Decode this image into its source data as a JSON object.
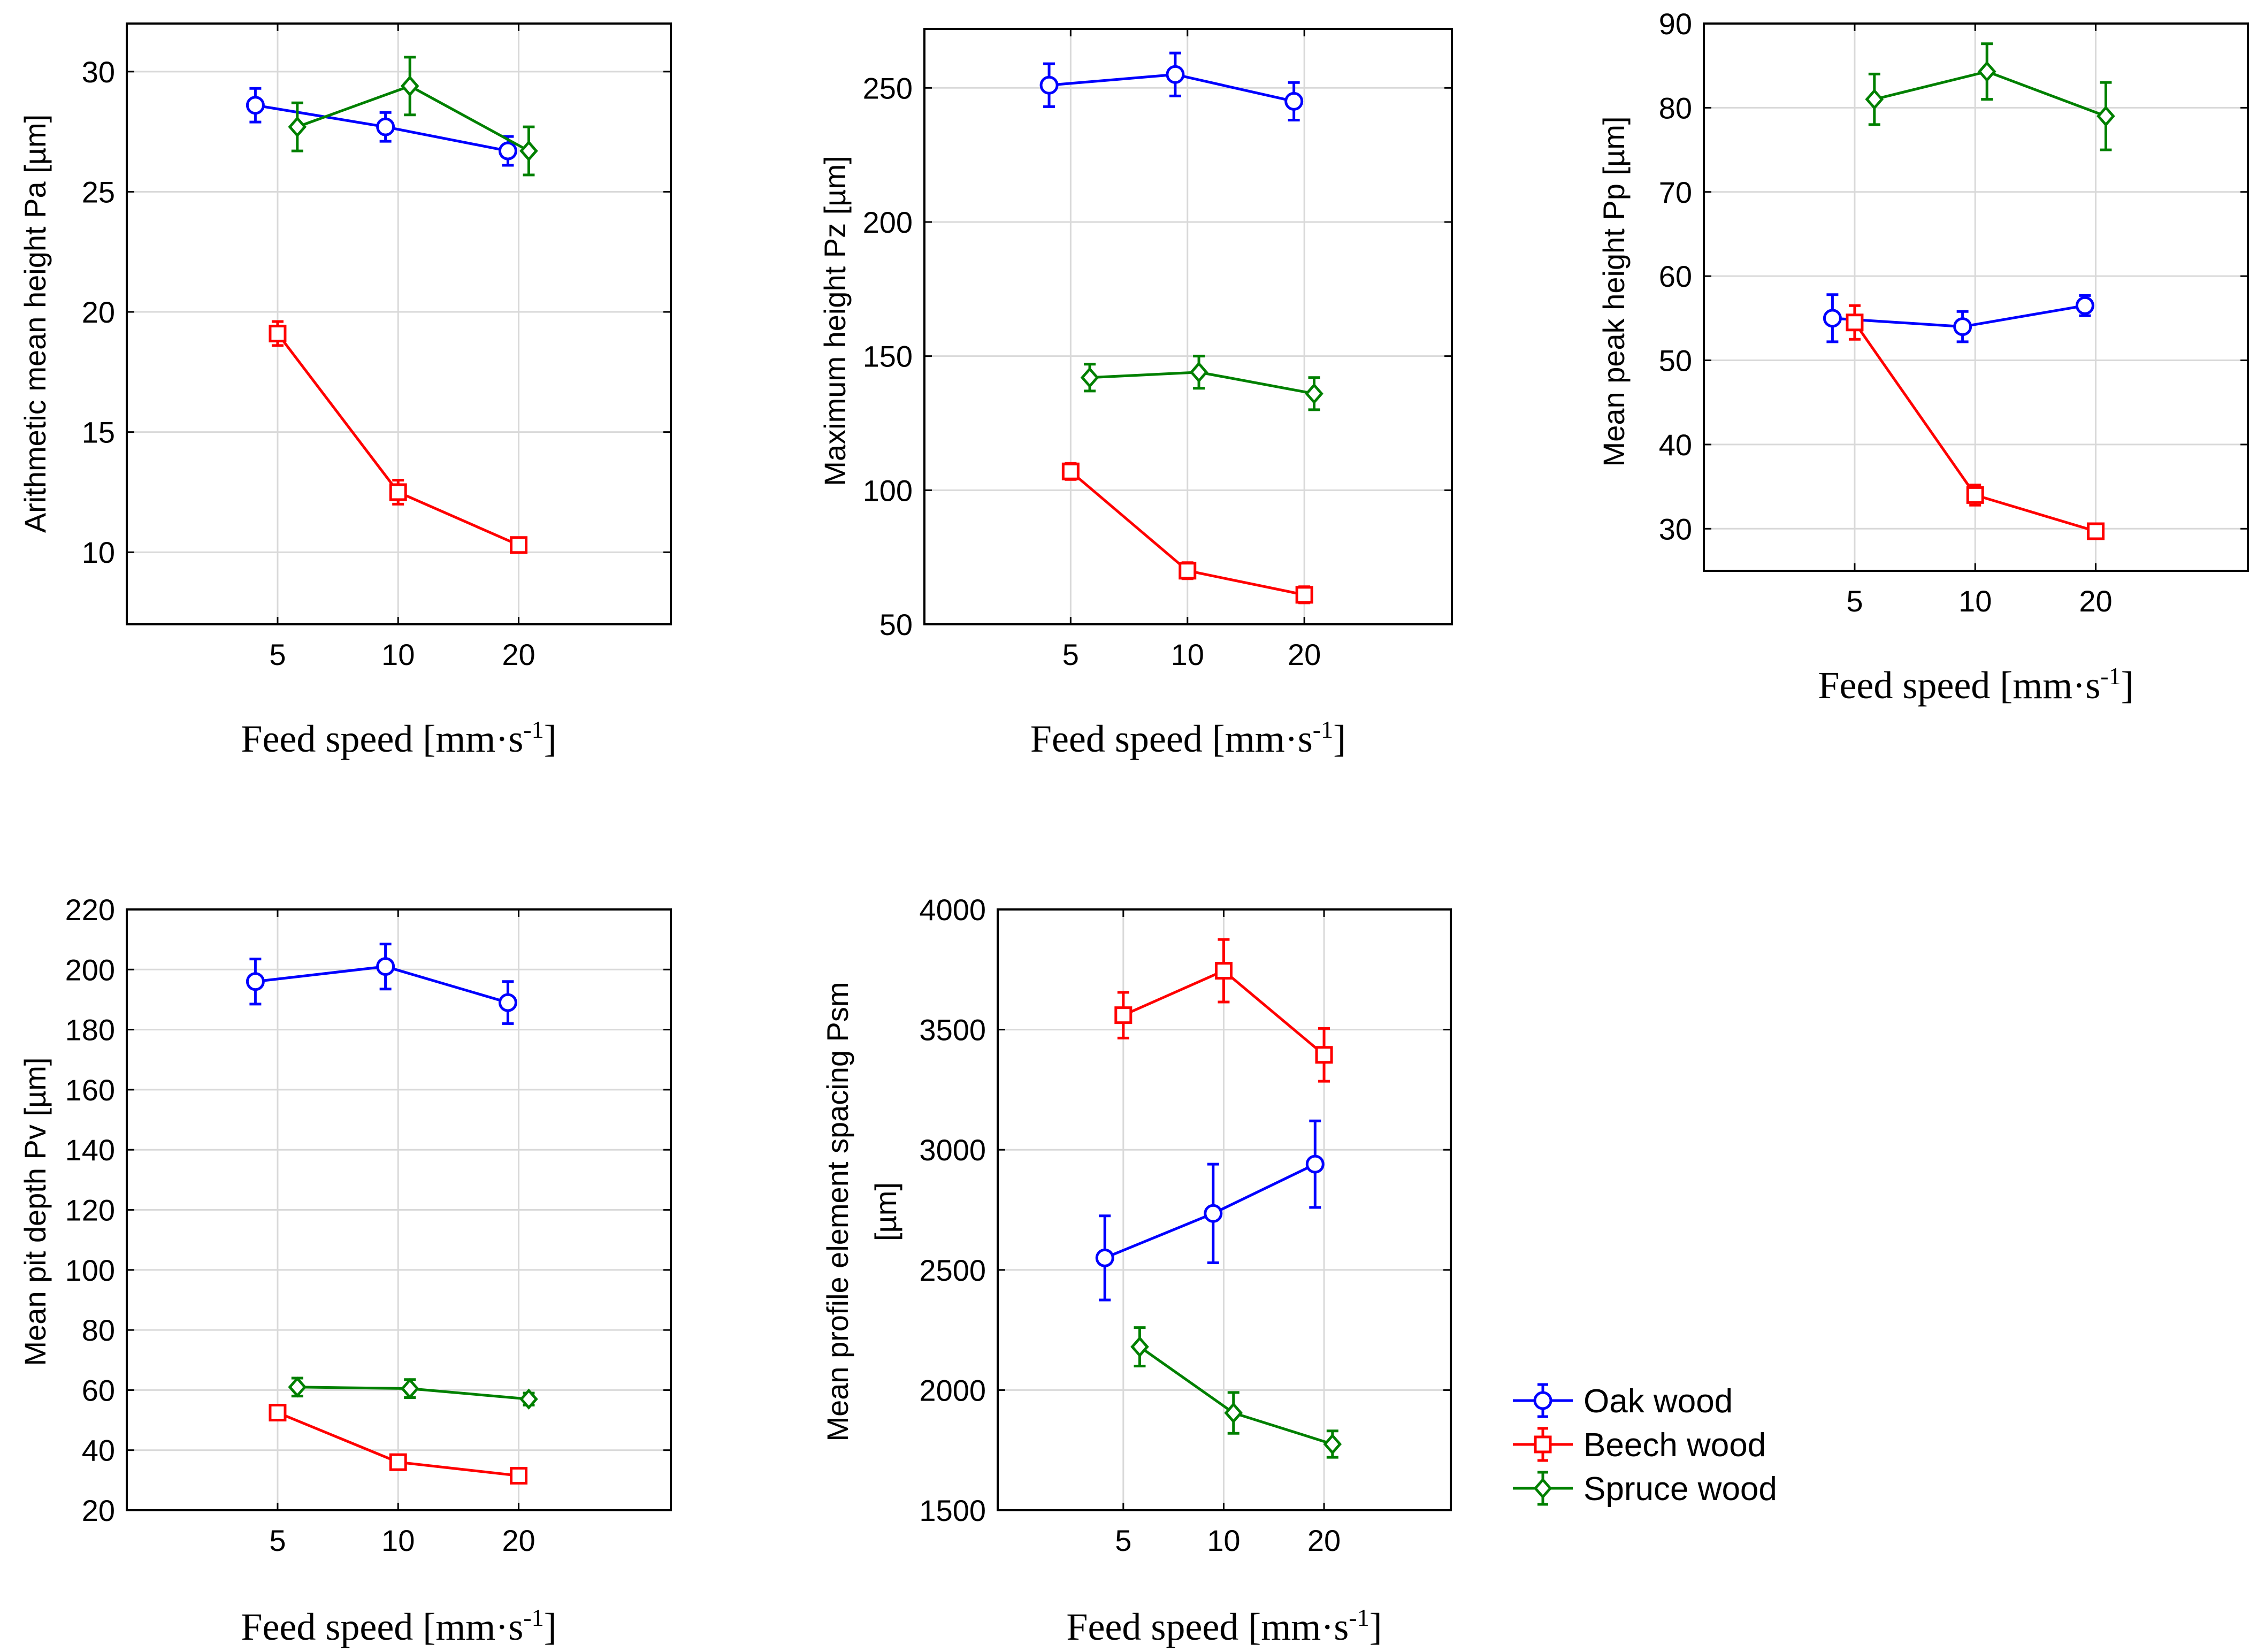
{
  "series_styles": [
    {
      "name": "Oak wood",
      "color": "#0000ff",
      "marker": "circle"
    },
    {
      "name": "Beech wood",
      "color": "#ff0000",
      "marker": "square"
    },
    {
      "name": "Spruce wood",
      "color": "#008000",
      "marker": "diamond"
    }
  ],
  "legend": {
    "items": [
      "Oak wood",
      "Beech wood",
      "Spruce wood"
    ]
  },
  "chart_data": [
    {
      "type": "line",
      "ylabel": "Arithmetic mean height Pa [µm]",
      "xlabel": "Feed speed [mm·s",
      "xlabel_sup": "-1",
      "xlabel_close": "]",
      "categories": [
        "5",
        "10",
        "20"
      ],
      "ylim": [
        7,
        32
      ],
      "yticks": [
        "10",
        "15",
        "20",
        "25",
        "30"
      ],
      "series": [
        {
          "name": "Oak wood",
          "x": [
            4.4,
            9.3,
            18.8
          ],
          "values": [
            28.6,
            27.7,
            26.7
          ],
          "err_low": [
            0.7,
            0.6,
            0.6
          ],
          "err_high": [
            0.7,
            0.6,
            0.6
          ]
        },
        {
          "name": "Beech wood",
          "x": [
            5.0,
            10.0,
            20.0
          ],
          "values": [
            19.1,
            12.5,
            10.3
          ],
          "err_low": [
            0.5,
            0.5,
            0.3
          ],
          "err_high": [
            0.5,
            0.5,
            0.3
          ]
        },
        {
          "name": "Spruce wood",
          "x": [
            5.6,
            10.7,
            21.2
          ],
          "values": [
            27.7,
            29.4,
            26.7
          ],
          "err_low": [
            1.0,
            1.2,
            1.0
          ],
          "err_high": [
            1.0,
            1.2,
            1.0
          ]
        }
      ]
    },
    {
      "type": "line",
      "ylabel": "Maximum height Pz [µm]",
      "xlabel": "Feed speed [mm·s",
      "xlabel_sup": "-1",
      "xlabel_close": "]",
      "categories": [
        "5",
        "10",
        "20"
      ],
      "ylim": [
        50,
        272
      ],
      "yticks": [
        "50",
        "100",
        "150",
        "200",
        "250"
      ],
      "series": [
        {
          "name": "Oak wood",
          "x": [
            4.4,
            9.3,
            18.8
          ],
          "values": [
            251,
            255,
            245
          ],
          "err_low": [
            8,
            8,
            7
          ],
          "err_high": [
            8,
            8,
            7
          ]
        },
        {
          "name": "Beech wood",
          "x": [
            5.0,
            10.0,
            20.0
          ],
          "values": [
            107,
            70,
            61
          ],
          "err_low": [
            3,
            3,
            3
          ],
          "err_high": [
            3,
            3,
            3
          ]
        },
        {
          "name": "Spruce wood",
          "x": [
            5.6,
            10.7,
            21.2
          ],
          "values": [
            142,
            144,
            136
          ],
          "err_low": [
            5,
            6,
            6
          ],
          "err_high": [
            5,
            6,
            6
          ]
        }
      ]
    },
    {
      "type": "line",
      "ylabel": "Mean peak height Pp [µm]",
      "xlabel": "Feed speed [mm·s",
      "xlabel_sup": "-1",
      "xlabel_close": "]",
      "categories": [
        "5",
        "10",
        "20"
      ],
      "ylim": [
        25,
        90
      ],
      "yticks": [
        "30",
        "40",
        "50",
        "60",
        "70",
        "80",
        "90"
      ],
      "series": [
        {
          "name": "Oak wood",
          "x": [
            4.4,
            9.3,
            18.8
          ],
          "values": [
            55,
            54,
            56.5
          ],
          "err_low": [
            2.8,
            1.8,
            1.2
          ],
          "err_high": [
            2.8,
            1.8,
            1.2
          ]
        },
        {
          "name": "Beech wood",
          "x": [
            5.0,
            10.0,
            20.0
          ],
          "values": [
            54.5,
            34,
            29.7
          ],
          "err_low": [
            2,
            1.2,
            0.8
          ],
          "err_high": [
            2,
            1.2,
            0.8
          ]
        },
        {
          "name": "Spruce wood",
          "x": [
            5.6,
            10.7,
            21.2
          ],
          "values": [
            81,
            84.3,
            79
          ],
          "err_low": [
            3,
            3.3,
            4
          ],
          "err_high": [
            3,
            3.3,
            4
          ]
        }
      ]
    },
    {
      "type": "line",
      "ylabel": "Mean pit depth Pv [µm]",
      "xlabel": "Feed speed [mm·s",
      "xlabel_sup": "-1",
      "xlabel_close": "]",
      "categories": [
        "5",
        "10",
        "20"
      ],
      "ylim": [
        20,
        220
      ],
      "yticks": [
        "20",
        "40",
        "60",
        "80",
        "100",
        "120",
        "140",
        "160",
        "180",
        "200",
        "220"
      ],
      "series": [
        {
          "name": "Oak wood",
          "x": [
            4.4,
            9.3,
            18.8
          ],
          "values": [
            196,
            201,
            189
          ],
          "err_low": [
            7.5,
            7.5,
            7
          ],
          "err_high": [
            7.5,
            7.5,
            7
          ]
        },
        {
          "name": "Beech wood",
          "x": [
            5.0,
            10.0,
            20.0
          ],
          "values": [
            52.5,
            36,
            31.5
          ],
          "err_low": [
            2,
            2,
            1.5
          ],
          "err_high": [
            2,
            2,
            1.5
          ]
        },
        {
          "name": "Spruce wood",
          "x": [
            5.6,
            10.7,
            21.2
          ],
          "values": [
            61,
            60.5,
            57
          ],
          "err_low": [
            3,
            3,
            2
          ],
          "err_high": [
            3,
            3,
            2
          ]
        }
      ]
    },
    {
      "type": "line",
      "ylabel": "Mean profile element spacing Psm",
      "ylabel2": "[µm]",
      "xlabel": "Feed speed [mm·s",
      "xlabel_sup": "-1",
      "xlabel_close": "]",
      "categories": [
        "5",
        "10",
        "20"
      ],
      "ylim": [
        1500,
        4000
      ],
      "yticks": [
        "1500",
        "2000",
        "2500",
        "3000",
        "3500",
        "4000"
      ],
      "series": [
        {
          "name": "Oak wood",
          "x": [
            4.4,
            9.3,
            18.8
          ],
          "values": [
            2550,
            2735,
            2940
          ],
          "err_low": [
            175,
            205,
            180
          ],
          "err_high": [
            175,
            205,
            180
          ]
        },
        {
          "name": "Beech wood",
          "x": [
            5.0,
            10.0,
            20.0
          ],
          "values": [
            3560,
            3745,
            3395
          ],
          "err_low": [
            95,
            130,
            110
          ],
          "err_high": [
            95,
            130,
            110
          ]
        },
        {
          "name": "Spruce wood",
          "x": [
            5.6,
            10.7,
            21.2
          ],
          "values": [
            2180,
            1905,
            1775
          ],
          "err_low": [
            80,
            85,
            55
          ],
          "err_high": [
            80,
            85,
            55
          ]
        }
      ]
    }
  ]
}
